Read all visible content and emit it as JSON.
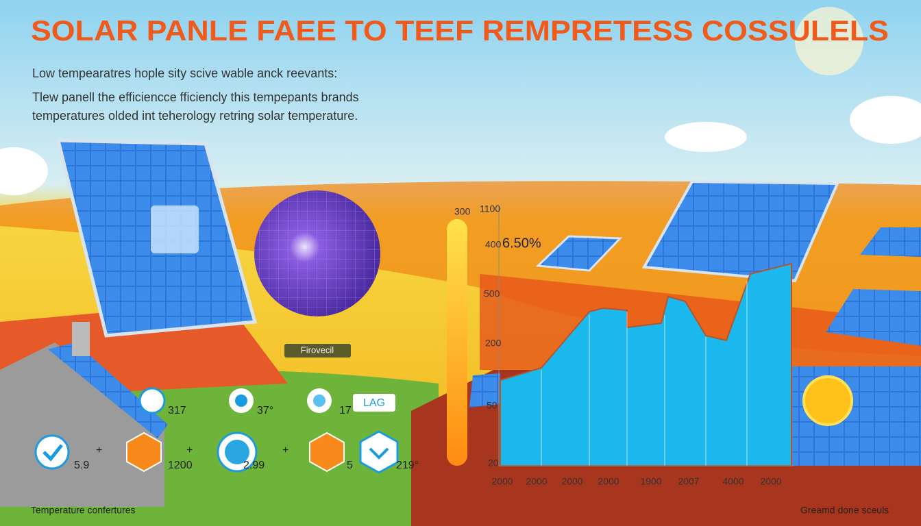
{
  "header": {
    "title": "SOLAR PANLE FAEE TO TEEF REMPRETESS COSSULELS",
    "lines": [
      "Low tempearatres hople sity scive wable anck reevants:",
      "Tlew panell the efficiencce fficiencly this tempepants brands",
      "temperatures olded int teherology retring solar temperature."
    ]
  },
  "labels": {
    "panel_tag": "Firovecil",
    "badge": "LAG",
    "plus": "+",
    "footer_left": "Temperature confertures",
    "footer_right": "Greamd done sceuls"
  },
  "stats_top": [
    "317",
    "37°",
    "17"
  ],
  "stats_bottom": [
    "5.9",
    "1200",
    "2.99",
    "5",
    "219°"
  ],
  "chart": {
    "annotation": "6.50%",
    "y_labels": [
      "300",
      "1100",
      "400",
      "500",
      "200",
      "50",
      "20"
    ],
    "x_labels": [
      "2000",
      "2000",
      "2000",
      "2000",
      "1900",
      "2007",
      "4000",
      "2000"
    ]
  }
}
